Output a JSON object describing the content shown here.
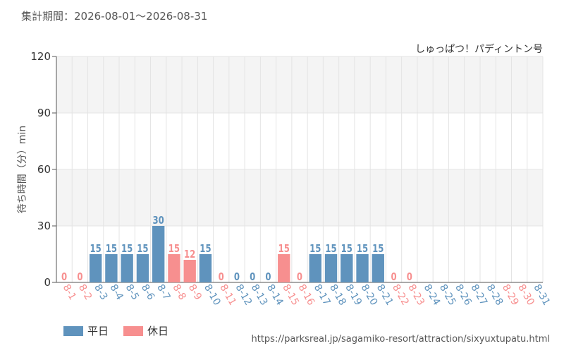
{
  "header": {
    "period": "集計期間：2026-08-01～2026-08-31"
  },
  "colors": {
    "weekday": "#5f93bd",
    "holiday": "#f78f8f",
    "grid": "#e4e4e4",
    "axis": "#555555"
  },
  "chart_data": {
    "type": "bar",
    "title": "しゅっぱつ！パディントン号",
    "ylabel": "待ち時間（分）min",
    "xlabel": "",
    "ylim": [
      0,
      120
    ],
    "yticks": [
      0,
      30,
      60,
      90,
      120
    ],
    "grid": true,
    "legend": "bottom-left",
    "categories": [
      "8-1",
      "8-2",
      "8-3",
      "8-4",
      "8-5",
      "8-6",
      "8-7",
      "8-8",
      "8-9",
      "8-10",
      "8-11",
      "8-12",
      "8-13",
      "8-14",
      "8-15",
      "8-16",
      "8-17",
      "8-18",
      "8-19",
      "8-20",
      "8-21",
      "8-22",
      "8-23",
      "8-24",
      "8-25",
      "8-26",
      "8-27",
      "8-28",
      "8-29",
      "8-30",
      "8-31"
    ],
    "values": [
      0,
      0,
      15,
      15,
      15,
      15,
      30,
      15,
      12,
      15,
      0,
      0,
      0,
      0,
      15,
      0,
      15,
      15,
      15,
      15,
      15,
      0,
      0,
      null,
      null,
      null,
      null,
      null,
      null,
      null,
      null
    ],
    "day_type": [
      "holiday",
      "holiday",
      "weekday",
      "weekday",
      "weekday",
      "weekday",
      "weekday",
      "holiday",
      "holiday",
      "weekday",
      "holiday",
      "weekday",
      "weekday",
      "weekday",
      "holiday",
      "holiday",
      "weekday",
      "weekday",
      "weekday",
      "weekday",
      "weekday",
      "holiday",
      "holiday",
      "weekday",
      "weekday",
      "weekday",
      "weekday",
      "weekday",
      "holiday",
      "holiday",
      "weekday"
    ],
    "series": [
      {
        "name": "平日",
        "key": "weekday"
      },
      {
        "name": "休日",
        "key": "holiday"
      }
    ]
  },
  "footer": {
    "source": "https://parksreal.jp/sagamiko-resort/attraction/sixyuxtupatu.html"
  }
}
